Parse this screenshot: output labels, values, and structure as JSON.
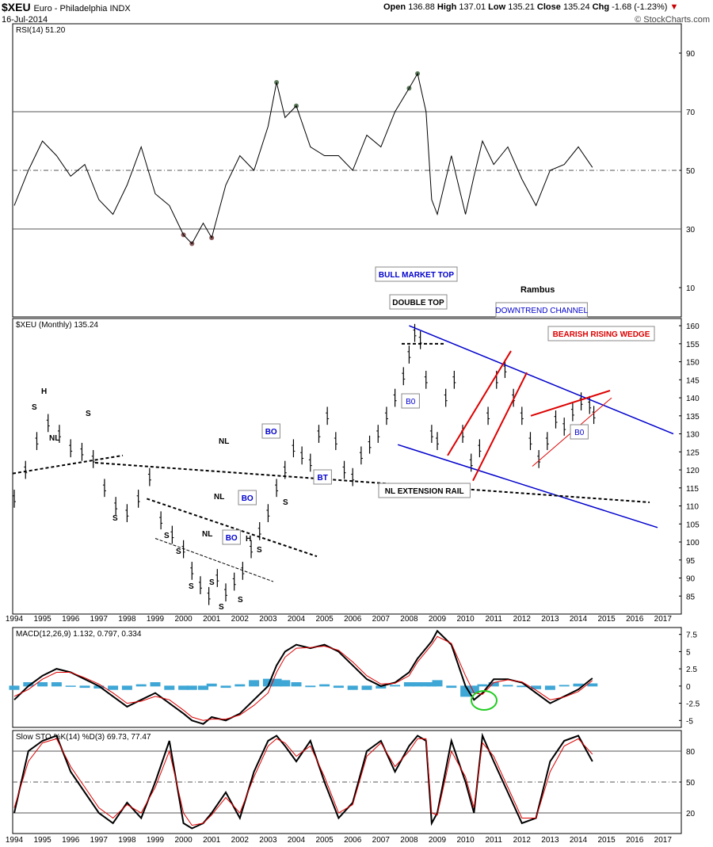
{
  "header": {
    "symbol": "$XEU",
    "name": "Euro - Philadelphia INDX",
    "date": "16-Jul-2014",
    "open_label": "Open",
    "open": "136.88",
    "high_label": "High",
    "high": "137.01",
    "low_label": "Low",
    "low": "135.21",
    "close_label": "Close",
    "close": "135.24",
    "chg_label": "Chg",
    "chg": "-1.68 (-1.23%)",
    "watermark": "© StockCharts.com"
  },
  "colors": {
    "blue_annotation": "#0000cc",
    "red_annotation": "#dd0000",
    "macd_hist": "#3fa7d6",
    "rsi_fill_overbought": "#5a7a5a",
    "rsi_fill_oversold": "#8b5a5a",
    "green_circle": "#22cc22",
    "chg_down": "#cc0000"
  },
  "chart_data": [
    {
      "type": "line",
      "legend": "RSI(14) 51.20",
      "y_ticks": [
        10,
        30,
        50,
        70,
        90
      ],
      "ylim": [
        0,
        100
      ],
      "reference_lines": [
        30,
        50,
        70
      ],
      "x": [
        1994.0,
        1994.5,
        1995.0,
        1995.5,
        1996.0,
        1996.5,
        1997.0,
        1997.5,
        1998.0,
        1998.5,
        1999.0,
        1999.5,
        2000.0,
        2000.3,
        2000.7,
        2001.0,
        2001.5,
        2002.0,
        2002.5,
        2003.0,
        2003.3,
        2003.6,
        2004.0,
        2004.5,
        2005.0,
        2005.5,
        2006.0,
        2006.5,
        2007.0,
        2007.5,
        2008.0,
        2008.3,
        2008.6,
        2008.8,
        2009.0,
        2009.5,
        2010.0,
        2010.3,
        2010.6,
        2011.0,
        2011.5,
        2012.0,
        2012.5,
        2013.0,
        2013.5,
        2014.0,
        2014.5
      ],
      "values": [
        38,
        50,
        60,
        55,
        48,
        52,
        40,
        35,
        45,
        58,
        42,
        38,
        28,
        25,
        32,
        27,
        45,
        55,
        50,
        65,
        80,
        68,
        72,
        58,
        55,
        55,
        50,
        62,
        58,
        70,
        78,
        83,
        70,
        40,
        35,
        55,
        35,
        48,
        60,
        52,
        58,
        47,
        38,
        50,
        52,
        58,
        51
      ]
    },
    {
      "type": "bar",
      "legend": "$XEU (Monthly) 135.24",
      "y_ticks": [
        85,
        90,
        95,
        100,
        105,
        110,
        115,
        120,
        125,
        130,
        135,
        140,
        145,
        150,
        155,
        160
      ],
      "ylim": [
        80,
        162
      ],
      "x_ticks": [
        "1994",
        "1995",
        "1996",
        "1997",
        "1998",
        "1999",
        "2000",
        "2001",
        "2002",
        "2003",
        "2004",
        "2005",
        "2006",
        "2007",
        "2008",
        "2009",
        "2010",
        "2011",
        "2012",
        "2013",
        "2014",
        "2015",
        "2016",
        "2017"
      ],
      "x": [
        1994.0,
        1994.4,
        1994.8,
        1995.2,
        1995.6,
        1996.0,
        1996.4,
        1996.8,
        1997.2,
        1997.6,
        1998.0,
        1998.4,
        1998.8,
        1999.2,
        1999.6,
        2000.0,
        2000.3,
        2000.6,
        2000.9,
        2001.2,
        2001.5,
        2001.8,
        2002.1,
        2002.4,
        2002.7,
        2003.0,
        2003.3,
        2003.6,
        2003.9,
        2004.2,
        2004.5,
        2004.8,
        2005.1,
        2005.4,
        2005.7,
        2006.0,
        2006.3,
        2006.6,
        2006.9,
        2007.2,
        2007.5,
        2007.8,
        2008.0,
        2008.2,
        2008.4,
        2008.6,
        2008.8,
        2009.0,
        2009.3,
        2009.6,
        2009.9,
        2010.2,
        2010.5,
        2010.8,
        2011.1,
        2011.4,
        2011.7,
        2012.0,
        2012.3,
        2012.6,
        2012.9,
        2013.2,
        2013.5,
        2013.8,
        2014.1,
        2014.4,
        2014.55
      ],
      "values": [
        112,
        120,
        128,
        133,
        130,
        126,
        125,
        123,
        115,
        110,
        108,
        112,
        118,
        106,
        102,
        98,
        92,
        88,
        85,
        90,
        86,
        89,
        92,
        98,
        103,
        108,
        115,
        120,
        126,
        124,
        122,
        130,
        135,
        128,
        120,
        118,
        124,
        127,
        130,
        135,
        140,
        146,
        152,
        158,
        156,
        145,
        130,
        128,
        140,
        145,
        130,
        122,
        126,
        135,
        145,
        148,
        140,
        135,
        128,
        123,
        128,
        134,
        132,
        136,
        139,
        138,
        135.24
      ],
      "annotations": [
        "BULL MARKET TOP",
        "DOUBLE TOP",
        "Rambus",
        "DOWNTREND CHANNEL",
        "BEARISH RISING WEDGE",
        "NL EXTENSION RAIL",
        "B0",
        "B0",
        "BO",
        "BO",
        "BO",
        "BO",
        "BT",
        "NL",
        "NL",
        "NL",
        "NL",
        "H",
        "H",
        "S",
        "S",
        "S",
        "S",
        "S",
        "S",
        "S",
        "S",
        "S",
        "S",
        "S"
      ]
    },
    {
      "type": "line",
      "legend": "MACD(12,26,9) 1.132, 0.797, 0.334",
      "legend_values": [
        "1.132",
        "0.797",
        "0.334"
      ],
      "y_ticks": [
        -5.0,
        -2.5,
        0.0,
        2.5,
        5.0,
        7.5
      ],
      "ylim": [
        -6,
        8.5
      ],
      "series": [
        {
          "name": "MACD",
          "values": [
            -2,
            0,
            1.5,
            2.5,
            2,
            1,
            0,
            -1.5,
            -3,
            -2,
            -1,
            -2.5,
            -4,
            -5,
            -5.5,
            -4.5,
            -5,
            -4,
            -2,
            0,
            3,
            5,
            6,
            5.5,
            6,
            5,
            3,
            1,
            0,
            0.5,
            2,
            4,
            5.5,
            6.5,
            8,
            6,
            0,
            -2,
            -1,
            1,
            1,
            0.5,
            -1,
            -2.5,
            -1.5,
            -0.5,
            1.13
          ]
        },
        {
          "name": "Signal",
          "values": [
            -1.5,
            -0.5,
            1,
            2,
            2,
            1.2,
            0.3,
            -1,
            -2.5,
            -2.2,
            -1.5,
            -2,
            -3.5,
            -4.5,
            -5,
            -4.8,
            -4.8,
            -4.2,
            -2.8,
            -1,
            2,
            4.2,
            5.5,
            5.6,
            5.8,
            5.2,
            3.5,
            1.5,
            0.3,
            0.4,
            1.5,
            3.5,
            5,
            6,
            7.2,
            6.2,
            1.5,
            -1,
            -1.2,
            0.5,
            0.9,
            0.6,
            -0.6,
            -2,
            -1.6,
            -0.8,
            0.8
          ]
        },
        {
          "name": "Histogram",
          "values": [
            -0.5,
            0.5,
            0.5,
            0.5,
            0,
            -0.2,
            -0.3,
            -0.5,
            -0.5,
            0.2,
            0.5,
            -0.5,
            -0.5,
            -0.5,
            -0.5,
            0.3,
            -0.2,
            0.2,
            0.8,
            1,
            1,
            0.8,
            0.5,
            -0.1,
            0.2,
            -0.2,
            -0.5,
            -0.5,
            -0.3,
            0.1,
            0.5,
            0.5,
            0.5,
            0.5,
            0.8,
            -0.2,
            -1.5,
            -1,
            0.2,
            0.5,
            0.1,
            -0.1,
            -0.4,
            -0.5,
            0.1,
            0.3,
            0.33
          ]
        }
      ]
    },
    {
      "type": "line",
      "legend": "Slow STO %K(14) %D(3) 69.73, 77.47",
      "legend_values": [
        "69.73",
        "77.47"
      ],
      "y_ticks": [
        20,
        50,
        80
      ],
      "ylim": [
        0,
        100
      ],
      "reference_lines": [
        20,
        50,
        80
      ],
      "series": [
        {
          "name": "%K",
          "values": [
            20,
            80,
            90,
            95,
            60,
            40,
            20,
            10,
            30,
            15,
            50,
            90,
            10,
            5,
            10,
            20,
            40,
            15,
            60,
            90,
            95,
            85,
            70,
            90,
            50,
            15,
            30,
            80,
            90,
            60,
            85,
            95,
            90,
            10,
            20,
            90,
            50,
            20,
            95,
            70,
            40,
            10,
            15,
            70,
            90,
            95,
            70
          ]
        },
        {
          "name": "%D",
          "values": [
            25,
            70,
            88,
            92,
            65,
            45,
            25,
            15,
            28,
            20,
            45,
            80,
            20,
            8,
            10,
            18,
            35,
            20,
            55,
            85,
            92,
            88,
            75,
            85,
            55,
            20,
            28,
            75,
            88,
            65,
            80,
            92,
            92,
            20,
            18,
            80,
            55,
            25,
            88,
            75,
            45,
            15,
            15,
            60,
            85,
            92,
            77
          ]
        }
      ]
    }
  ]
}
